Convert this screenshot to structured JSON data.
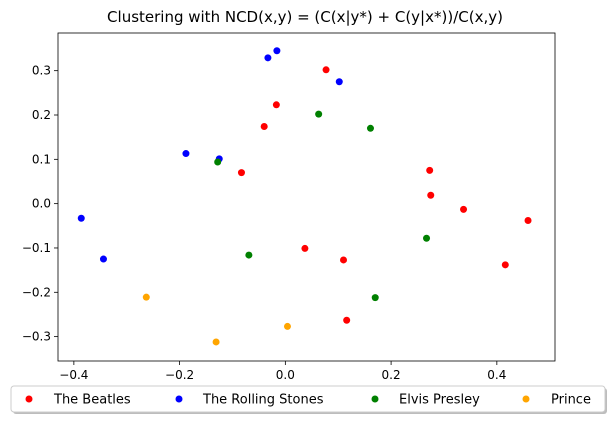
{
  "chart_data": {
    "type": "scatter",
    "title": "Clustering with NCD(x,y) = (C(x|y*) + C(y|x*))/C(x,y)",
    "xlabel": "",
    "ylabel": "",
    "xlim": [
      -0.43,
      0.51
    ],
    "ylim": [
      -0.355,
      0.385
    ],
    "xticks": [
      -0.4,
      -0.2,
      0.0,
      0.2,
      0.4
    ],
    "xtick_labels": [
      "−0.4",
      "−0.2",
      "0.0",
      "0.2",
      "0.4"
    ],
    "yticks": [
      0.3,
      0.2,
      0.1,
      0.0,
      -0.1,
      -0.2,
      -0.3
    ],
    "ytick_labels": [
      "0.3",
      "0.2",
      "0.1",
      "0.0",
      "−0.1",
      "−0.2",
      "−0.3"
    ],
    "grid": false,
    "legend_position": "bottom-center, outside plot, single row",
    "series": [
      {
        "name": "The Beatles",
        "color": "#ff0000",
        "points": [
          [
            0.077,
            0.302
          ],
          [
            -0.017,
            0.223
          ],
          [
            -0.04,
            0.174
          ],
          [
            -0.083,
            0.07
          ],
          [
            0.273,
            0.075
          ],
          [
            0.275,
            0.019
          ],
          [
            0.337,
            -0.013
          ],
          [
            0.459,
            -0.038
          ],
          [
            0.037,
            -0.101
          ],
          [
            0.11,
            -0.127
          ],
          [
            0.416,
            -0.138
          ],
          [
            0.116,
            -0.263
          ]
        ]
      },
      {
        "name": "The Rolling Stones",
        "color": "#0000ff",
        "points": [
          [
            -0.016,
            0.345
          ],
          [
            -0.033,
            0.329
          ],
          [
            0.102,
            0.275
          ],
          [
            -0.188,
            0.113
          ],
          [
            -0.125,
            0.101
          ],
          [
            -0.386,
            -0.033
          ],
          [
            -0.344,
            -0.125
          ]
        ]
      },
      {
        "name": "Elvis Presley",
        "color": "#008000",
        "points": [
          [
            0.063,
            0.202
          ],
          [
            0.161,
            0.17
          ],
          [
            -0.128,
            0.094
          ],
          [
            0.267,
            -0.078
          ],
          [
            -0.069,
            -0.116
          ],
          [
            0.17,
            -0.212
          ]
        ]
      },
      {
        "name": "Prince",
        "color": "#ffa500",
        "points": [
          [
            -0.263,
            -0.211
          ],
          [
            0.004,
            -0.277
          ],
          [
            -0.131,
            -0.312
          ]
        ]
      }
    ]
  }
}
